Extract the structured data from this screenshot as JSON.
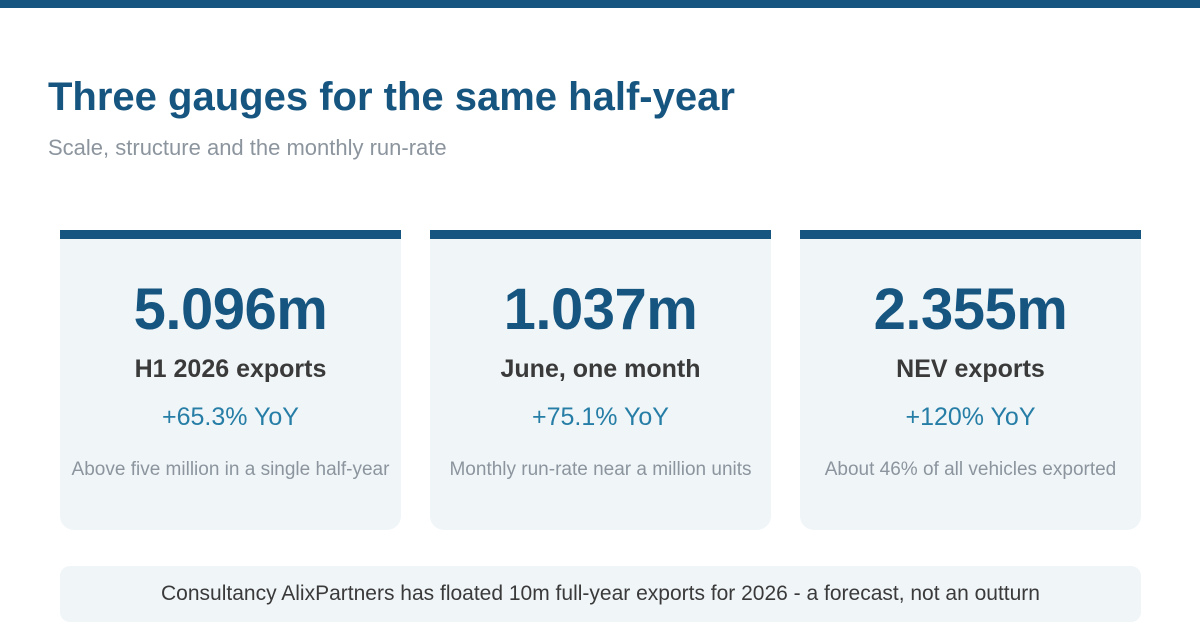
{
  "header": {
    "title": "Three gauges for the same half-year",
    "subtitle": "Scale, structure and the monthly run-rate"
  },
  "colors": {
    "accent": "#15557f",
    "change": "#267ea6",
    "card_bg": "#f0f5f8",
    "muted_text": "#8c959e",
    "body_text": "#3a3a3a"
  },
  "cards": [
    {
      "value": "5.096m",
      "label": "H1 2026 exports",
      "change": "+65.3% YoY",
      "note": "Above five million in a single half-year"
    },
    {
      "value": "1.037m",
      "label": "June, one month",
      "change": "+75.1% YoY",
      "note": "Monthly run-rate near a million units"
    },
    {
      "value": "2.355m",
      "label": "NEV exports",
      "change": "+120% YoY",
      "note": "About 46% of all vehicles exported"
    }
  ],
  "footer": {
    "note": "Consultancy AlixPartners has floated 10m full-year exports for 2026 - a forecast, not an outturn"
  }
}
